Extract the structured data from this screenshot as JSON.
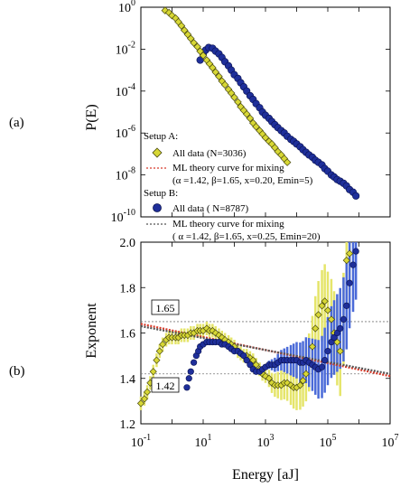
{
  "panel_labels": {
    "a": "(a)",
    "b": "(b)"
  },
  "legend": {
    "setup_a_title": "Setup A:",
    "setup_a_data": "All data (N=3036)",
    "setup_a_theory_line1": "ML theory curve for mixing",
    "setup_a_theory_line2": "(α =1.42, β=1.65, x=0.20, Emin=5)",
    "setup_b_title": "Setup B:",
    "setup_b_data": "All data ( N=8787)",
    "setup_b_theory_line1": "ML theory curve for mixing",
    "setup_b_theory_line2": "( α =1.42, β=1.65, x=0.25, Emin=20)"
  },
  "annotations": {
    "ref_high": "1.65",
    "ref_low": "1.42"
  },
  "colors": {
    "setup_a": "#d7d735",
    "setup_a_edge": "#4a4a10",
    "setup_b": "#1f2f9a",
    "setup_b_edge": "#0a1250",
    "theory_a": "#d83a2a",
    "theory_b": "#555555",
    "errorbar_a": "#e5e56a",
    "errorbar_b": "#4a6ad8"
  },
  "chart_data": [
    {
      "type": "scatter",
      "panel": "a",
      "xscale": "log",
      "yscale": "log",
      "xlim": [
        0.1,
        10000000
      ],
      "ylim": [
        1e-10,
        1
      ],
      "ylabel": "P(E)",
      "y_ticks": [
        "10^0",
        "10^-2",
        "10^-4",
        "10^-6",
        "10^-8",
        "10^-10"
      ],
      "series": [
        {
          "name": "All data (N=3036)",
          "points": [
            [
              0.6,
              0.7
            ],
            [
              0.8,
              0.55
            ],
            [
              1.0,
              0.4
            ],
            [
              1.3,
              0.3
            ],
            [
              1.6,
              0.2
            ],
            [
              2.0,
              0.13
            ],
            [
              2.5,
              0.08
            ],
            [
              3.2,
              0.05
            ],
            [
              4.0,
              0.032
            ],
            [
              5.0,
              0.02
            ],
            [
              6.5,
              0.013
            ],
            [
              8,
              0.008
            ],
            [
              10,
              0.005
            ],
            [
              13,
              0.003
            ],
            [
              16,
              0.002
            ],
            [
              20,
              0.0013
            ],
            [
              25,
              0.0008
            ],
            [
              32,
              0.0005
            ],
            [
              40,
              0.0003
            ],
            [
              50,
              0.0002
            ],
            [
              65,
              0.00012
            ],
            [
              80,
              8e-05
            ],
            [
              100,
              5e-05
            ],
            [
              130,
              3e-05
            ],
            [
              160,
              1.8e-05
            ],
            [
              200,
              1.2e-05
            ],
            [
              250,
              8e-06
            ],
            [
              320,
              5e-06
            ],
            [
              400,
              3e-06
            ],
            [
              500,
              2e-06
            ],
            [
              650,
              1.3e-06
            ],
            [
              800,
              9e-07
            ],
            [
              1000,
              6e-07
            ],
            [
              1300,
              4e-07
            ],
            [
              1600,
              3e-07
            ],
            [
              2000,
              2e-07
            ],
            [
              2500,
              1.3e-07
            ],
            [
              3200,
              9e-08
            ],
            [
              4000,
              6e-08
            ],
            [
              5000,
              4e-08
            ]
          ]
        },
        {
          "name": "All data ( N=8787)",
          "points": [
            [
              8,
              0.003
            ],
            [
              10,
              0.006
            ],
            [
              12,
              0.009
            ],
            [
              15,
              0.012
            ],
            [
              20,
              0.011
            ],
            [
              25,
              0.008
            ],
            [
              32,
              0.006
            ],
            [
              40,
              0.004
            ],
            [
              50,
              0.0025
            ],
            [
              65,
              0.0016
            ],
            [
              80,
              0.001
            ],
            [
              100,
              0.0006
            ],
            [
              130,
              0.0004
            ],
            [
              160,
              0.00025
            ],
            [
              200,
              0.00016
            ],
            [
              250,
              0.0001
            ],
            [
              320,
              6e-05
            ],
            [
              400,
              4e-05
            ],
            [
              500,
              2.5e-05
            ],
            [
              650,
              1.6e-05
            ],
            [
              800,
              1e-05
            ],
            [
              1000,
              7e-06
            ],
            [
              1300,
              5e-06
            ],
            [
              1600,
              3.5e-06
            ],
            [
              2000,
              2.5e-06
            ],
            [
              2500,
              1.8e-06
            ],
            [
              3200,
              1.3e-06
            ],
            [
              4000,
              1e-06
            ],
            [
              5000,
              7e-07
            ],
            [
              6500,
              5e-07
            ],
            [
              8000,
              4e-07
            ],
            [
              10000,
              3e-07
            ],
            [
              13000,
              2.2e-07
            ],
            [
              16000,
              1.6e-07
            ],
            [
              20000,
              1.2e-07
            ],
            [
              25000,
              9e-08
            ],
            [
              32000,
              7e-08
            ],
            [
              40000,
              5e-08
            ],
            [
              50000,
              4e-08
            ],
            [
              65000,
              3e-08
            ],
            [
              80000,
              2e-08
            ],
            [
              100000,
              1.5e-08
            ],
            [
              130000,
              1e-08
            ],
            [
              160000,
              8e-09
            ],
            [
              200000,
              6e-09
            ],
            [
              250000,
              5e-09
            ],
            [
              320000,
              4e-09
            ],
            [
              400000,
              3e-09
            ],
            [
              500000,
              2e-09
            ],
            [
              650000,
              1.5e-09
            ],
            [
              800000,
              1e-09
            ]
          ]
        }
      ]
    },
    {
      "type": "scatter",
      "panel": "b",
      "xscale": "log",
      "xlim": [
        0.1,
        10000000
      ],
      "ylim": [
        1.2,
        2.0
      ],
      "xlabel": "Energy [aJ]",
      "ylabel": "Exponent",
      "y_ticks": [
        "2.0",
        "1.8",
        "1.6",
        "1.4",
        "1.2"
      ],
      "x_ticks": [
        "10^-1",
        "10^1",
        "10^3",
        "10^5",
        "10^7"
      ],
      "reference_lines": [
        1.65,
        1.42
      ],
      "series": [
        {
          "name": "All data (N=3036)",
          "points": [
            [
              0.1,
              1.29
            ],
            [
              0.13,
              1.31
            ],
            [
              0.16,
              1.34
            ],
            [
              0.2,
              1.38
            ],
            [
              0.25,
              1.43
            ],
            [
              0.32,
              1.48
            ],
            [
              0.4,
              1.52
            ],
            [
              0.5,
              1.55
            ],
            [
              0.65,
              1.57
            ],
            [
              0.8,
              1.58
            ],
            [
              1.0,
              1.58
            ],
            [
              1.3,
              1.58
            ],
            [
              1.6,
              1.58
            ],
            [
              2.0,
              1.59
            ],
            [
              2.5,
              1.59
            ],
            [
              3.2,
              1.59
            ],
            [
              4.0,
              1.6
            ],
            [
              5.0,
              1.6
            ],
            [
              6.5,
              1.61
            ],
            [
              8,
              1.61
            ],
            [
              10,
              1.61
            ],
            [
              13,
              1.62
            ],
            [
              16,
              1.61
            ],
            [
              20,
              1.61
            ],
            [
              25,
              1.6
            ],
            [
              32,
              1.59
            ],
            [
              40,
              1.58
            ],
            [
              50,
              1.57
            ],
            [
              65,
              1.56
            ],
            [
              80,
              1.55
            ],
            [
              100,
              1.54
            ],
            [
              130,
              1.52
            ],
            [
              160,
              1.51
            ],
            [
              200,
              1.5
            ],
            [
              250,
              1.5
            ],
            [
              320,
              1.49
            ],
            [
              400,
              1.48
            ],
            [
              500,
              1.46
            ],
            [
              650,
              1.44
            ],
            [
              800,
              1.42
            ],
            [
              1000,
              1.41
            ],
            [
              1300,
              1.4
            ],
            [
              1600,
              1.38
            ],
            [
              2000,
              1.37
            ],
            [
              2500,
              1.37
            ],
            [
              3200,
              1.37
            ],
            [
              4000,
              1.38
            ],
            [
              5000,
              1.38
            ],
            [
              6500,
              1.37
            ],
            [
              8000,
              1.36
            ],
            [
              10000,
              1.36
            ],
            [
              13000,
              1.37
            ],
            [
              16000,
              1.39
            ],
            [
              20000,
              1.42
            ],
            [
              25000,
              1.47
            ],
            [
              32000,
              1.54
            ],
            [
              40000,
              1.62
            ],
            [
              50000,
              1.68
            ],
            [
              65000,
              1.72
            ],
            [
              80000,
              1.74
            ],
            [
              100000,
              1.7
            ],
            [
              130000,
              1.66
            ],
            [
              160000,
              1.6
            ],
            [
              200000,
              1.56
            ],
            [
              250000,
              1.52
            ],
            [
              320000,
              1.66
            ],
            [
              400000,
              1.92
            ],
            [
              500000,
              1.95
            ]
          ]
        },
        {
          "name": "All data ( N=8787)",
          "points": [
            [
              3,
              1.36
            ],
            [
              3.5,
              1.4
            ],
            [
              4,
              1.43
            ],
            [
              5,
              1.47
            ],
            [
              6,
              1.5
            ],
            [
              7,
              1.52
            ],
            [
              8,
              1.54
            ],
            [
              10,
              1.55
            ],
            [
              13,
              1.56
            ],
            [
              16,
              1.56
            ],
            [
              20,
              1.56
            ],
            [
              25,
              1.56
            ],
            [
              32,
              1.56
            ],
            [
              40,
              1.55
            ],
            [
              50,
              1.55
            ],
            [
              65,
              1.54
            ],
            [
              80,
              1.53
            ],
            [
              100,
              1.52
            ],
            [
              130,
              1.52
            ],
            [
              160,
              1.51
            ],
            [
              200,
              1.5
            ],
            [
              250,
              1.48
            ],
            [
              320,
              1.46
            ],
            [
              400,
              1.44
            ],
            [
              500,
              1.43
            ],
            [
              650,
              1.43
            ],
            [
              800,
              1.44
            ],
            [
              1000,
              1.45
            ],
            [
              1300,
              1.46
            ],
            [
              1600,
              1.46
            ],
            [
              2000,
              1.46
            ],
            [
              2500,
              1.47
            ],
            [
              3200,
              1.48
            ],
            [
              4000,
              1.48
            ],
            [
              5000,
              1.48
            ],
            [
              6500,
              1.48
            ],
            [
              8000,
              1.48
            ],
            [
              10000,
              1.48
            ],
            [
              13000,
              1.47
            ],
            [
              16000,
              1.47
            ],
            [
              20000,
              1.48
            ],
            [
              25000,
              1.47
            ],
            [
              32000,
              1.46
            ],
            [
              40000,
              1.45
            ],
            [
              50000,
              1.44
            ],
            [
              65000,
              1.45
            ],
            [
              80000,
              1.48
            ],
            [
              100000,
              1.52
            ],
            [
              130000,
              1.56
            ],
            [
              160000,
              1.58
            ],
            [
              200000,
              1.6
            ],
            [
              250000,
              1.62
            ],
            [
              320000,
              1.66
            ],
            [
              400000,
              1.72
            ],
            [
              500000,
              1.82
            ],
            [
              650000,
              1.9
            ],
            [
              800000,
              1.96
            ]
          ]
        }
      ],
      "theory_curves": [
        {
          "name": "ML theory curve for mixing (Setup A)",
          "x": [
            0.1,
            10000000
          ],
          "y": [
            1.64,
            1.41
          ]
        },
        {
          "name": "ML theory curve for mixing (Setup B)",
          "x": [
            0.1,
            10000000
          ],
          "y": [
            1.63,
            1.42
          ]
        }
      ]
    }
  ]
}
